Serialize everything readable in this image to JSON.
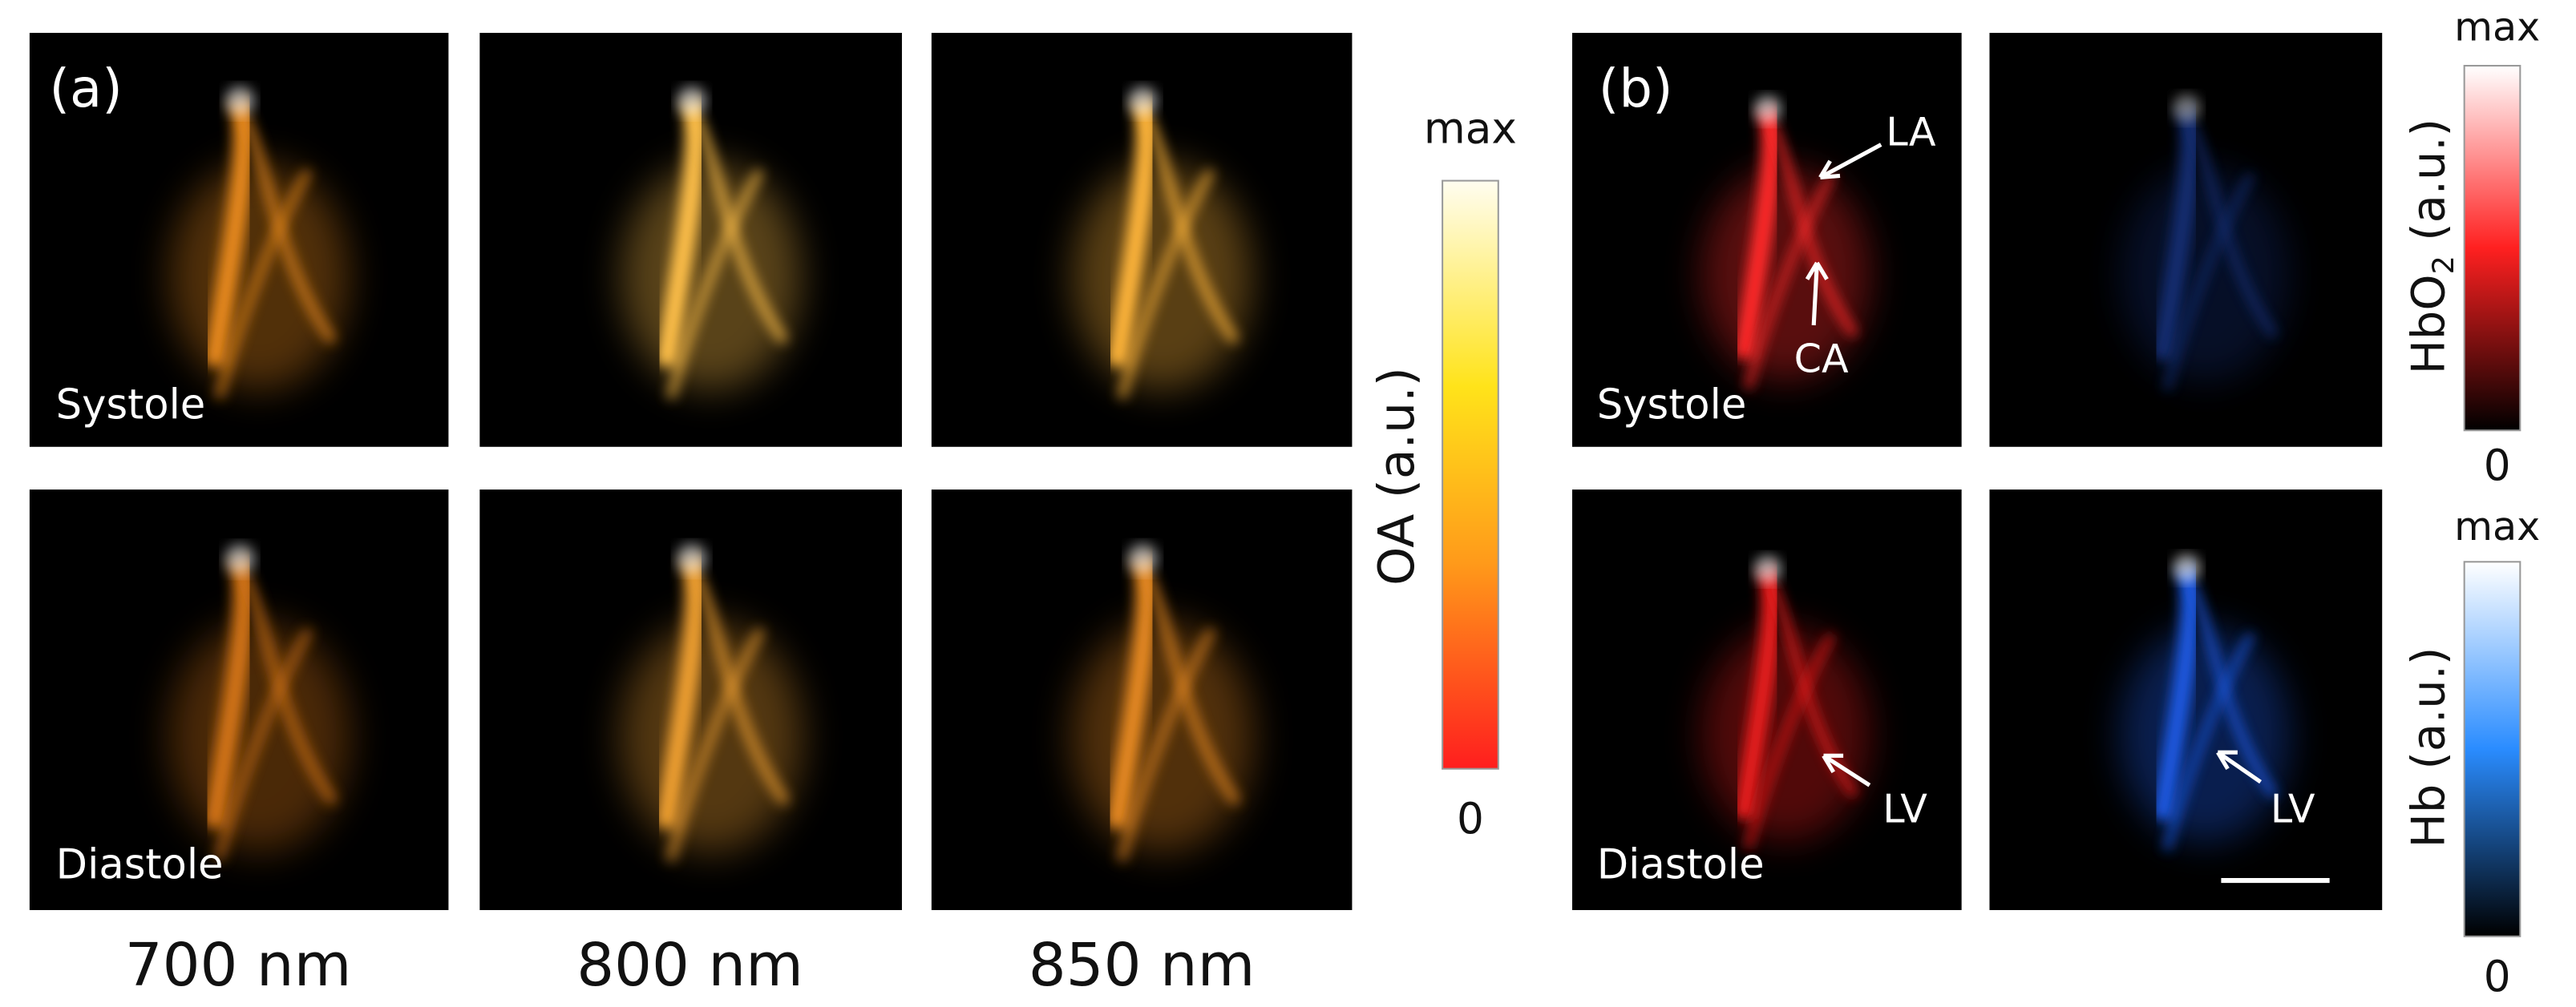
{
  "panel_a": {
    "label": "(a)",
    "row_labels": [
      "Systole",
      "Diastole"
    ],
    "wavelengths": [
      "700 nm",
      "800 nm",
      "850 nm"
    ],
    "colorbar": {
      "label": "OA (a.u.)",
      "max": "max",
      "min": "0"
    }
  },
  "panel_b": {
    "label": "(b)",
    "row_labels": [
      "Systole",
      "Diastole"
    ],
    "annotations": [
      "LA",
      "CA",
      "LV",
      "LV"
    ],
    "colorbars": [
      {
        "label_parts": [
          "HbO",
          "2",
          " (a.u.)"
        ],
        "max": "max",
        "min": "0"
      },
      {
        "label": "Hb (a.u.)",
        "max": "max",
        "min": "0"
      }
    ]
  }
}
